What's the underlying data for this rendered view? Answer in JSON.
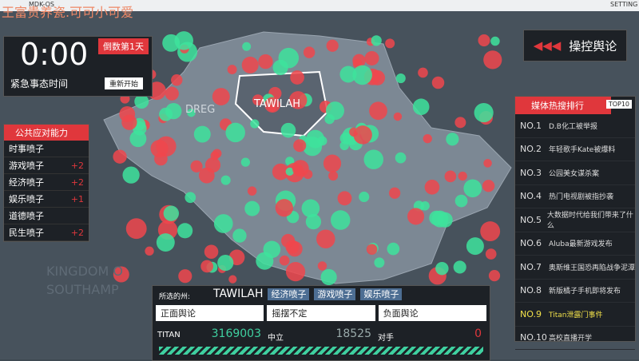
{
  "topbar": {
    "watermark": "王富贵养瓷.可可小可爱",
    "os": "MDK-OS",
    "setting": "SETTING"
  },
  "timer": {
    "time": "0:00",
    "countdown": "倒数第1天",
    "label": "紧急事态时间",
    "restart": "重新开始"
  },
  "control_button": "操控舆论",
  "map_labels": [
    "TAWILAH",
    "DREG",
    "KINGDOM O",
    "SOUTHAMP"
  ],
  "abilities": {
    "title": "公共应对能力",
    "items": [
      {
        "name": "时事喷子",
        "bonus": ""
      },
      {
        "name": "游戏喷子",
        "bonus": "+2"
      },
      {
        "name": "经济喷子",
        "bonus": "+2"
      },
      {
        "name": "娱乐喷子",
        "bonus": "+1"
      },
      {
        "name": "道德喷子",
        "bonus": ""
      },
      {
        "name": "民生喷子",
        "bonus": "+2"
      }
    ]
  },
  "hot_search": {
    "title": "媒体热搜排行",
    "badge": "TOP10",
    "rows": [
      [
        "NO.1",
        "D.B化工被举报"
      ],
      [
        "NO.2",
        "年轻歌手Kate被爆料"
      ],
      [
        "NO.3",
        "公园美女谋杀案"
      ],
      [
        "NO.4",
        "热门电视剧被指抄袭"
      ],
      [
        "NO.5",
        "大数据时代给我们带来了什么"
      ],
      [
        "NO.6",
        "Aluba最新游戏发布"
      ],
      [
        "NO.7",
        "奥斯维王国恐再陷战争泥潭"
      ],
      [
        "NO.8",
        "新版橘子手机即将发布"
      ],
      [
        "NO.9",
        "Titan泄露门事件"
      ],
      [
        "NO.10",
        "高校直播开学"
      ]
    ]
  },
  "selected": {
    "label": "所选的州:",
    "state": "TAWILAH",
    "tags": [
      "经济喷子",
      "游戏喷子",
      "娱乐喷子"
    ],
    "headers": [
      "正面舆论",
      "摇摆不定",
      "负面舆论"
    ],
    "stats": [
      {
        "name": "TITAN",
        "value": "3169003"
      },
      {
        "name": "中立",
        "value": "18525"
      },
      {
        "name": "对手",
        "value": "0"
      }
    ]
  }
}
